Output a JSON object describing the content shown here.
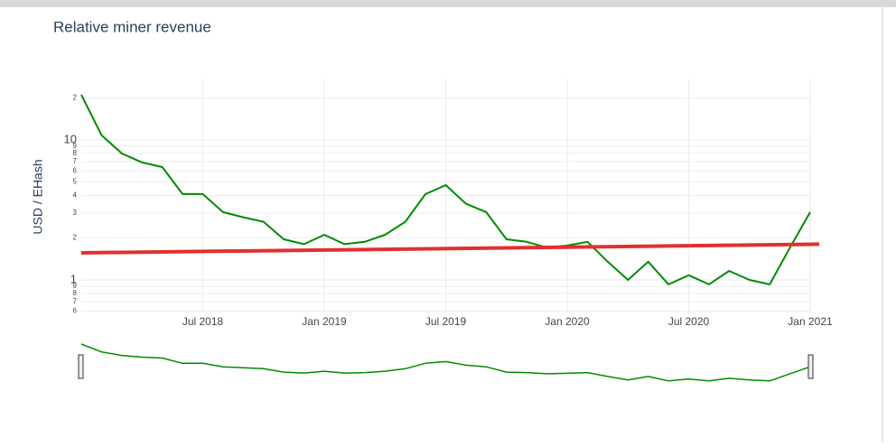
{
  "chart_data": {
    "type": "line",
    "title": "Relative miner revenue",
    "y_label": "USD / EHash",
    "log_y": true,
    "grid": true,
    "x": [
      "2018-01",
      "2018-02",
      "2018-03",
      "2018-04",
      "2018-05",
      "2018-06",
      "2018-07",
      "2018-08",
      "2018-09",
      "2018-10",
      "2018-11",
      "2018-12",
      "2019-01",
      "2019-02",
      "2019-03",
      "2019-04",
      "2019-05",
      "2019-06",
      "2019-07",
      "2019-08",
      "2019-09",
      "2019-10",
      "2019-11",
      "2019-12",
      "2020-01",
      "2020-02",
      "2020-03",
      "2020-04",
      "2020-05",
      "2020-06",
      "2020-07",
      "2020-08",
      "2020-09",
      "2020-10",
      "2020-11",
      "2020-12",
      "2021-01"
    ],
    "series": [
      {
        "name": "Relative miner revenue",
        "color": "#008b00",
        "values": [
          21,
          10.8,
          8,
          6.9,
          6.4,
          4.1,
          4.1,
          3.05,
          2.8,
          2.6,
          1.95,
          1.8,
          2.1,
          1.8,
          1.87,
          2.1,
          2.6,
          4.1,
          4.75,
          3.5,
          3.05,
          1.95,
          1.87,
          1.7,
          1.76,
          1.87,
          1.35,
          1.0,
          1.35,
          0.93,
          1.08,
          0.93,
          1.16,
          1.0,
          0.93,
          1.7,
          3.05
        ]
      },
      {
        "name": "Trend",
        "color": "#e03030",
        "x": [
          "2018-01",
          "2021-01"
        ],
        "values": [
          1.56,
          1.8
        ]
      }
    ],
    "xlim": [
      "2018-01",
      "2021-01"
    ],
    "xticks": [
      {
        "value": "2018-07",
        "label": "Jul 2018"
      },
      {
        "value": "2019-01",
        "label": "Jan 2019"
      },
      {
        "value": "2019-07",
        "label": "Jul 2019"
      },
      {
        "value": "2020-01",
        "label": "Jan 2020"
      },
      {
        "value": "2020-07",
        "label": "Jul 2020"
      },
      {
        "value": "2021-01",
        "label": "Jan 2021"
      }
    ],
    "ylim": [
      0.577,
      22.6
    ],
    "yticks": [
      {
        "value": 20,
        "label": "2"
      },
      10,
      9,
      8,
      7,
      6,
      5,
      4,
      3,
      2,
      1,
      {
        "value": 0.9,
        "label": "9"
      },
      {
        "value": 0.8,
        "label": "8"
      },
      {
        "value": 0.7,
        "label": "7"
      },
      {
        "value": 0.6,
        "label": "6"
      }
    ]
  }
}
